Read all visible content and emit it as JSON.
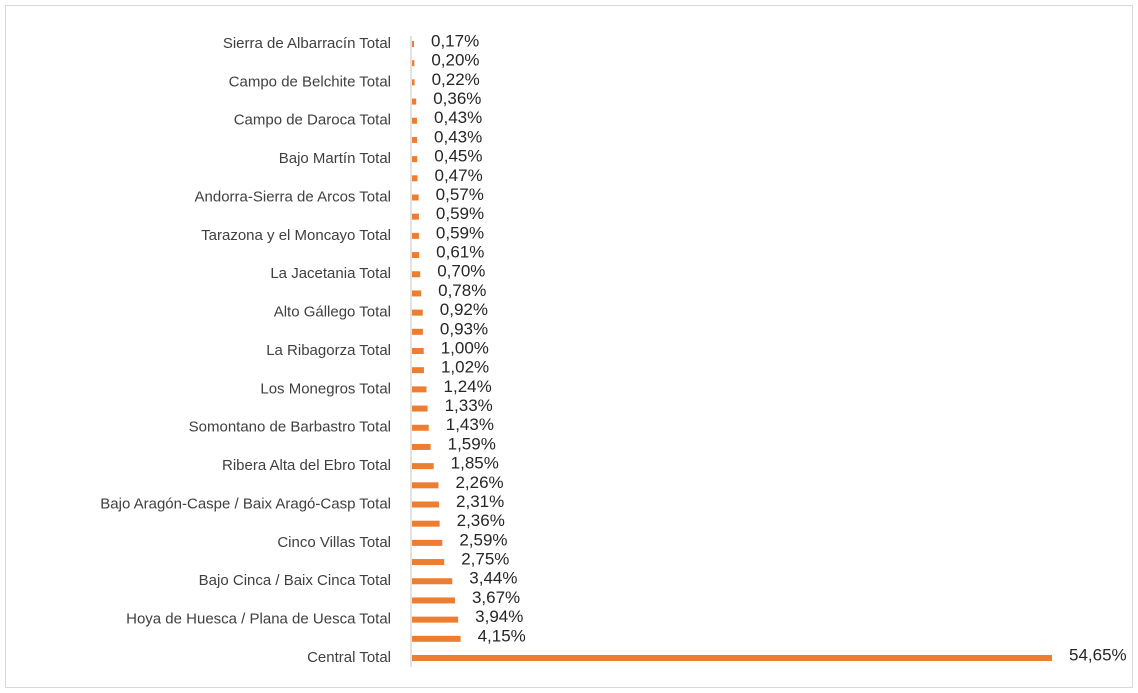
{
  "chart_data": {
    "type": "bar",
    "orientation": "horizontal",
    "color": "#ed7d31",
    "categories": [
      "Sierra de Albarracín Total",
      null,
      "Campo de Belchite Total",
      null,
      "Campo de Daroca Total",
      null,
      "Bajo Martín Total",
      null,
      "Andorra-Sierra de Arcos Total",
      null,
      "Tarazona y el Moncayo Total",
      null,
      "La Jacetania Total",
      null,
      "Alto Gállego Total",
      null,
      "La Ribagorza Total",
      null,
      "Los Monegros Total",
      null,
      "Somontano de Barbastro Total",
      null,
      "Ribera Alta del Ebro Total",
      null,
      "Bajo Aragón-Caspe / Baix Aragó-Casp Total",
      null,
      "Cinco Villas Total",
      null,
      "Bajo Cinca / Baix Cinca Total",
      null,
      "Hoya de Huesca / Plana de Uesca Total",
      null,
      "Central Total"
    ],
    "values": [
      0.17,
      0.2,
      0.22,
      0.36,
      0.43,
      0.43,
      0.45,
      0.47,
      0.57,
      0.59,
      0.59,
      0.61,
      0.7,
      0.78,
      0.92,
      0.93,
      1.0,
      1.02,
      1.24,
      1.33,
      1.43,
      1.59,
      1.85,
      2.26,
      2.31,
      2.36,
      2.59,
      2.75,
      3.44,
      3.67,
      3.94,
      4.15,
      54.65
    ],
    "value_labels": [
      "0,17%",
      "0,20%",
      "0,22%",
      "0,36%",
      "0,43%",
      "0,43%",
      "0,45%",
      "0,47%",
      "0,57%",
      "0,59%",
      "0,59%",
      "0,61%",
      "0,70%",
      "0,78%",
      "0,92%",
      "0,93%",
      "1,00%",
      "1,02%",
      "1,24%",
      "1,33%",
      "1,43%",
      "1,59%",
      "1,85%",
      "2,26%",
      "2,31%",
      "2,36%",
      "2,59%",
      "2,75%",
      "3,44%",
      "3,67%",
      "3,94%",
      "4,15%",
      "54,65%"
    ]
  }
}
